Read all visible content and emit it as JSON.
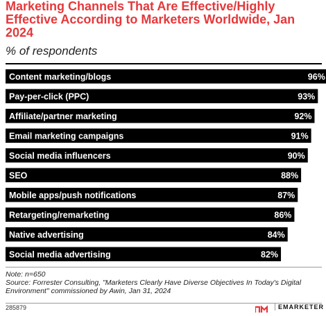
{
  "header": {
    "title": "Marketing Channels That Are Effective/Highly Effective According to Marketers Worldwide, Jan 2024",
    "subtitle": "% of respondents"
  },
  "chart_data": {
    "type": "bar",
    "orientation": "horizontal",
    "categories": [
      "Content marketing/blogs",
      "Pay-per-click (PPC)",
      "Affiliate/partner marketing",
      "Email marketing campaigns",
      "Social media influencers",
      "SEO",
      "Mobile apps/push notifications",
      "Retargeting/remarketing",
      "Native advertising",
      "Social media advertising"
    ],
    "values": [
      96,
      93,
      92,
      91,
      90,
      88,
      87,
      86,
      84,
      82
    ],
    "value_labels": [
      "96%",
      "93%",
      "92%",
      "91%",
      "90%",
      "88%",
      "87%",
      "86%",
      "84%",
      "82%"
    ],
    "xlim": [
      0,
      100
    ],
    "bar_color": "#000000",
    "label_color": "#ffffff",
    "grid": false
  },
  "footer": {
    "note": "Note: n=650",
    "source": "Source: Forrester Consulting, \"Marketers Clearly Have Diverse Objectives In Today's Digital Environment\" commissioned by Awin, Jan 31, 2024",
    "chart_id": "285879",
    "logo_text": "EMARKETER",
    "accent_color": "#e5383b"
  }
}
